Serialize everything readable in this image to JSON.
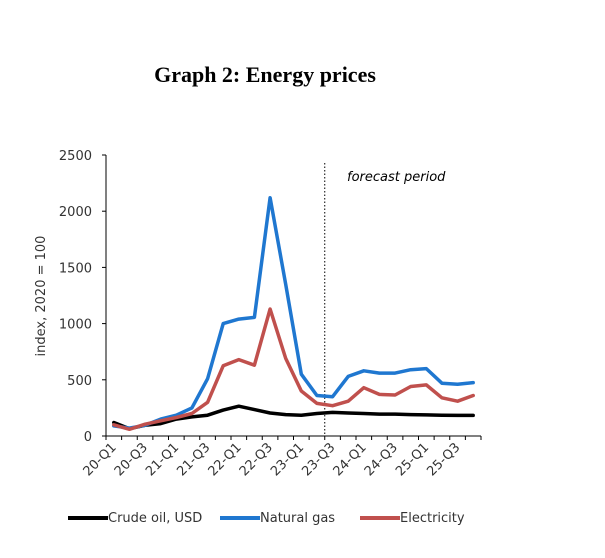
{
  "chart_data": {
    "type": "line",
    "title": "Graph 2: Energy prices",
    "ylabel": "index, 2020 = 100",
    "xlabel": "",
    "ylim": [
      0,
      2500
    ],
    "yticks": [
      0,
      500,
      1000,
      1500,
      2000,
      2500
    ],
    "x": [
      "20-Q1",
      "20-Q2",
      "20-Q3",
      "20-Q4",
      "21-Q1",
      "21-Q2",
      "21-Q3",
      "21-Q4",
      "22-Q1",
      "22-Q2",
      "22-Q3",
      "22-Q4",
      "23-Q1",
      "23-Q2",
      "23-Q3",
      "23-Q4",
      "24-Q1",
      "24-Q2",
      "24-Q3",
      "24-Q4",
      "25-Q1",
      "25-Q2",
      "25-Q3",
      "25-Q4"
    ],
    "xtick_labels": [
      "20-Q1",
      "20-Q3",
      "21-Q1",
      "21-Q3",
      "22-Q1",
      "22-Q3",
      "23-Q1",
      "23-Q3",
      "24-Q1",
      "24-Q3",
      "25-Q1",
      "25-Q3"
    ],
    "forecast_start": "23-Q3",
    "annotation": "forecast period",
    "legend_position": "bottom",
    "grid": false,
    "series": [
      {
        "name": "Crude oil, USD",
        "color": "#000000",
        "values": [
          120,
          65,
          95,
          110,
          150,
          170,
          185,
          230,
          265,
          235,
          205,
          190,
          185,
          200,
          210,
          205,
          200,
          195,
          195,
          190,
          188,
          185,
          183,
          183
        ]
      },
      {
        "name": "Natural gas",
        "color": "#1f77d0",
        "values": [
          90,
          70,
          95,
          150,
          185,
          250,
          510,
          1000,
          1040,
          1055,
          2120,
          1350,
          550,
          360,
          350,
          530,
          580,
          560,
          560,
          590,
          600,
          470,
          460,
          475
        ]
      },
      {
        "name": "Electricity",
        "color": "#c0504d",
        "values": [
          100,
          60,
          105,
          135,
          165,
          200,
          300,
          625,
          680,
          630,
          1130,
          690,
          400,
          290,
          270,
          310,
          430,
          370,
          365,
          440,
          455,
          340,
          310,
          360
        ]
      }
    ]
  }
}
